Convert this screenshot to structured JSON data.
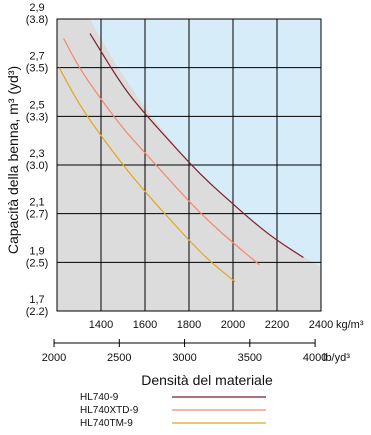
{
  "chart_data": {
    "type": "line",
    "ylabel": "Capacità della benna, m³ (yd³)",
    "xlabel": "Densità del materiale",
    "x_unit_primary": "kg/m³",
    "x_unit_secondary": "lb/yd³",
    "xlim": [
      1200,
      2400
    ],
    "ylim": [
      1.7,
      2.9
    ],
    "x_ticks_primary": [
      {
        "value": 1400,
        "label": "1400"
      },
      {
        "value": 1600,
        "label": "1600"
      },
      {
        "value": 1800,
        "label": "1800"
      },
      {
        "value": 2000,
        "label": "2000"
      },
      {
        "value": 2200,
        "label": "2200"
      },
      {
        "value": 2400,
        "label": "2400"
      }
    ],
    "x_ticks_secondary": [
      {
        "value": 2000,
        "label": "2000"
      },
      {
        "value": 2500,
        "label": "2500"
      },
      {
        "value": 3000,
        "label": "3000"
      },
      {
        "value": 3500,
        "label": "3500"
      },
      {
        "value": 4000,
        "label": "4000"
      }
    ],
    "y_ticks": [
      {
        "value": 1.7,
        "label": "1,7",
        "label2": "(2.2)"
      },
      {
        "value": 1.9,
        "label": "1,9",
        "label2": "(2.5)"
      },
      {
        "value": 2.1,
        "label": "2,1",
        "label2": "(2.7)"
      },
      {
        "value": 2.3,
        "label": "2,3",
        "label2": "(3.0)"
      },
      {
        "value": 2.5,
        "label": "2,5",
        "label2": "(3.3)"
      },
      {
        "value": 2.7,
        "label": "2,7",
        "label2": "(3.5)"
      },
      {
        "value": 2.9,
        "label": "2,9",
        "label2": "(3.8)"
      }
    ],
    "grid": true,
    "shaded_regions": [
      {
        "color": "#dcdcdc"
      },
      {
        "color": "#d6ecf8"
      }
    ],
    "series": [
      {
        "name": "HL740-9",
        "color": "#7b1f2e",
        "x": [
          1350,
          1500,
          1600,
          1700,
          1800,
          1900,
          2000,
          2100,
          2200,
          2320
        ],
        "y": [
          2.84,
          2.62,
          2.51,
          2.41,
          2.31,
          2.22,
          2.14,
          2.06,
          1.99,
          1.92
        ]
      },
      {
        "name": "HL740XTD-9",
        "color": "#f08a70",
        "x": [
          1230,
          1300,
          1400,
          1500,
          1600,
          1700,
          1800,
          1900,
          2000,
          2120
        ],
        "y": [
          2.82,
          2.7,
          2.57,
          2.45,
          2.35,
          2.25,
          2.15,
          2.06,
          1.98,
          1.89
        ]
      },
      {
        "name": "HL740TM-9",
        "color": "#e0a820",
        "x": [
          1210,
          1300,
          1400,
          1500,
          1600,
          1700,
          1800,
          1900,
          2010
        ],
        "y": [
          2.7,
          2.55,
          2.42,
          2.3,
          2.19,
          2.09,
          1.99,
          1.9,
          1.82
        ]
      }
    ]
  }
}
